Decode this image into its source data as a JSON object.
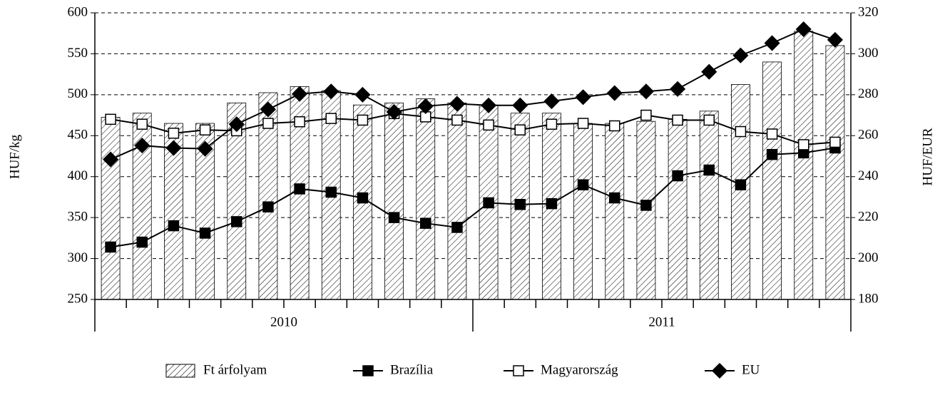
{
  "chart_data": {
    "type": "bar-line",
    "categories": [
      null,
      null,
      null,
      null,
      null,
      null,
      null,
      null,
      null,
      null,
      null,
      null,
      null,
      null,
      null,
      null,
      null,
      null,
      null,
      null,
      null,
      null,
      null,
      null
    ],
    "x_groups": [
      "2010",
      "2011"
    ],
    "ylabel": "HUF/kg",
    "y2label": "HUF/EUR",
    "ylim": [
      250,
      600
    ],
    "yticks": [
      250,
      300,
      350,
      400,
      450,
      500,
      550,
      600
    ],
    "y2lim": [
      180,
      320
    ],
    "y2ticks": [
      180,
      200,
      220,
      240,
      260,
      280,
      300,
      320
    ],
    "grid": true,
    "legend": "bottom",
    "series": [
      {
        "name": "Ft árfolyam",
        "type": "bar",
        "axis": "y2",
        "color": "#000000",
        "pattern": "hatch",
        "values": [
          269,
          271,
          266,
          266,
          276,
          281,
          284,
          282,
          275,
          276,
          278,
          276,
          275,
          271,
          271,
          266,
          266,
          267,
          268,
          272,
          285,
          296,
          311,
          304
        ]
      },
      {
        "name": "Brazília",
        "type": "line",
        "color": "#000000",
        "marker": "square",
        "fill": "#000000",
        "values": [
          314,
          320,
          340,
          331,
          345,
          363,
          385,
          381,
          374,
          350,
          343,
          338,
          368,
          366,
          367,
          390,
          374,
          365,
          401,
          408,
          390,
          427,
          429,
          435
        ]
      },
      {
        "name": "Magyarország",
        "type": "line",
        "color": "#000000",
        "marker": "square",
        "fill": "#ffffff",
        "values": [
          470,
          464,
          453,
          457,
          456,
          465,
          467,
          471,
          469,
          477,
          473,
          469,
          463,
          457,
          464,
          465,
          462,
          475,
          469,
          469,
          455,
          452,
          439,
          442
        ]
      },
      {
        "name": "EU",
        "type": "line",
        "color": "#000000",
        "marker": "diamond",
        "fill": "#000000",
        "values": [
          421,
          438,
          435,
          434,
          464,
          482,
          501,
          504,
          500,
          479,
          486,
          489,
          487,
          487,
          492,
          497,
          502,
          504,
          507,
          528,
          548,
          563,
          580,
          567
        ]
      }
    ]
  }
}
